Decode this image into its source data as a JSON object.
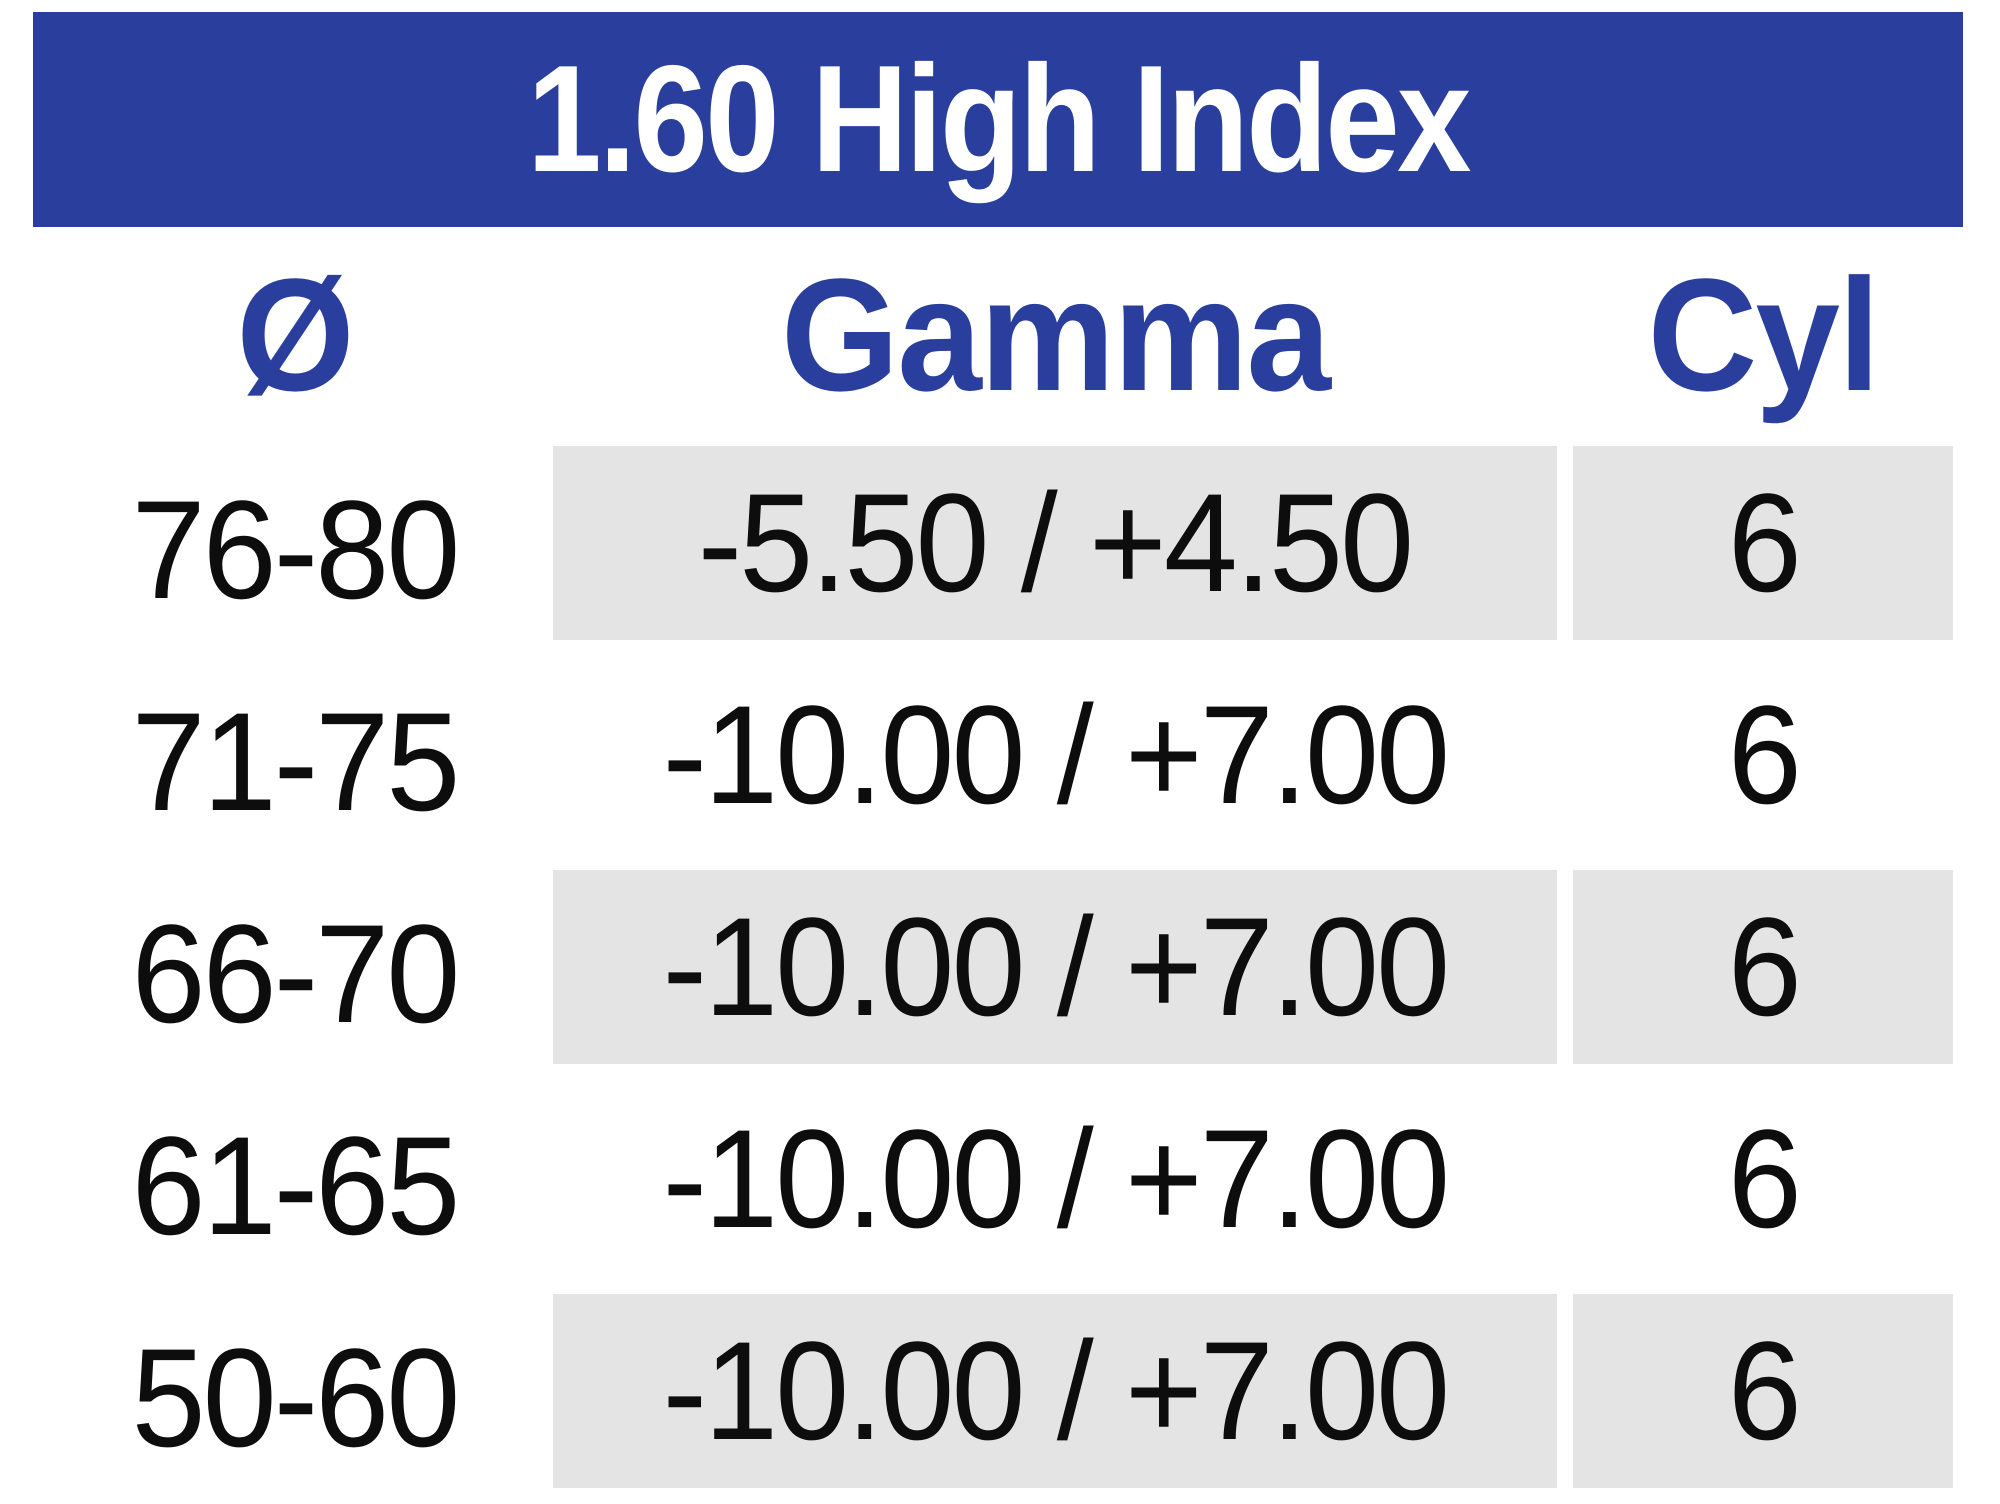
{
  "banner": {
    "title": "1.60 High Index"
  },
  "columns": [
    {
      "key": "diameter",
      "label": "Ø"
    },
    {
      "key": "gamma",
      "label": "Gamma"
    },
    {
      "key": "cyl",
      "label": "Cyl"
    }
  ],
  "rows": [
    {
      "diameter": "76-80",
      "gamma": "-5.50 / +4.50",
      "cyl": "6",
      "shaded": true
    },
    {
      "diameter": "71-75",
      "gamma": "-10.00 / +7.00",
      "cyl": "6",
      "shaded": false
    },
    {
      "diameter": "66-70",
      "gamma": "-10.00 / +7.00",
      "cyl": "6",
      "shaded": true
    },
    {
      "diameter": "61-65",
      "gamma": "-10.00 / +7.00",
      "cyl": "6",
      "shaded": false
    },
    {
      "diameter": "50-60",
      "gamma": "-10.00 / +7.00",
      "cyl": "6",
      "shaded": true
    }
  ],
  "colors": {
    "accent_blue": "#2a3f9d",
    "row_shade_gray": "#e5e4e4",
    "title_text": "#ffffff",
    "data_text": "#0d0d0d"
  }
}
